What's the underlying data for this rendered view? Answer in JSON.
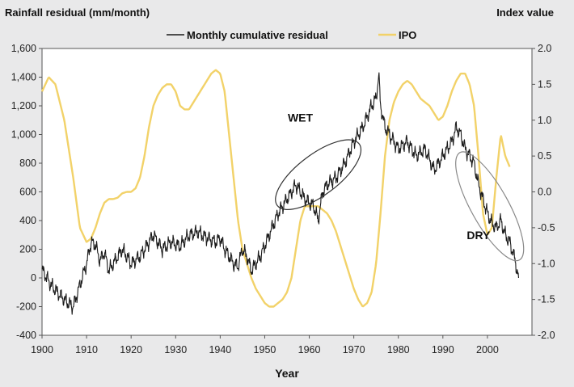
{
  "chart_data": {
    "type": "line",
    "left_axis_title": "Rainfall residual (mm/month)",
    "right_axis_title": "Index value",
    "xlabel": "Year",
    "xlim": [
      1900,
      2010
    ],
    "ylim_left": [
      -400,
      1600
    ],
    "ylim_right": [
      -2.0,
      2.0
    ],
    "x_ticks": [
      1900,
      1910,
      1920,
      1930,
      1940,
      1950,
      1960,
      1970,
      1980,
      1990,
      2000
    ],
    "x_tick_labels": [
      "1900",
      "1910",
      "1920",
      "1930",
      "1940",
      "1950",
      "1960",
      "1970",
      "1980",
      "1990",
      "2000"
    ],
    "y_left_ticks": [
      -400,
      -200,
      0,
      200,
      400,
      600,
      800,
      1000,
      1200,
      1400,
      1600
    ],
    "y_left_tick_labels": [
      "-400",
      "-200",
      "0",
      "200",
      "400",
      "600",
      "800",
      "1,000",
      "1,200",
      "1,400",
      "1,600"
    ],
    "y_right_ticks": [
      -2.0,
      -1.5,
      -1.0,
      -0.5,
      0.0,
      0.5,
      1.0,
      1.5,
      2.0
    ],
    "y_right_tick_labels": [
      "-2.0",
      "-1.5",
      "-1.0",
      "-0.5",
      "0.0",
      "0.5",
      "1.0",
      "1.5",
      "2.0"
    ],
    "series": [
      {
        "name": "Monthly cumulative residual",
        "axis": "left",
        "color": "#1a1a1a",
        "x": [
          1900,
          1902,
          1904,
          1906,
          1907,
          1909,
          1910,
          1911,
          1912,
          1913,
          1914,
          1915,
          1916,
          1918,
          1919,
          1920,
          1922,
          1924,
          1925,
          1927,
          1929,
          1931,
          1933,
          1935,
          1937,
          1939,
          1940,
          1941,
          1942,
          1943,
          1944,
          1945,
          1946,
          1947,
          1949,
          1951,
          1953,
          1955,
          1957,
          1959,
          1961,
          1962,
          1963,
          1964,
          1966,
          1968,
          1970,
          1972,
          1974,
          1975,
          1975.6,
          1976,
          1977,
          1978,
          1980,
          1982,
          1984,
          1986,
          1988,
          1990,
          1992,
          1993,
          1994,
          1995,
          1996,
          1997,
          1998,
          1999,
          2000,
          2001,
          2002,
          2003,
          2004,
          2005,
          2006,
          2007
        ],
        "values": [
          60,
          -50,
          -120,
          -180,
          -200,
          0,
          100,
          250,
          230,
          120,
          180,
          50,
          100,
          200,
          150,
          100,
          150,
          250,
          300,
          200,
          250,
          220,
          300,
          320,
          280,
          250,
          280,
          200,
          150,
          100,
          80,
          200,
          150,
          50,
          150,
          300,
          450,
          550,
          650,
          550,
          500,
          400,
          600,
          650,
          700,
          800,
          950,
          1050,
          1200,
          1250,
          1420,
          1200,
          1050,
          1000,
          900,
          950,
          850,
          900,
          750,
          850,
          950,
          1050,
          1000,
          900,
          850,
          800,
          650,
          550,
          450,
          380,
          350,
          400,
          300,
          250,
          150,
          0
        ],
        "noise_amplitude": 60
      },
      {
        "name": "IPO",
        "axis": "right",
        "color": "#f2d269",
        "x": [
          1900,
          1901.5,
          1903,
          1905,
          1907,
          1908.5,
          1910,
          1911,
          1912,
          1913,
          1914,
          1915,
          1916,
          1917,
          1918,
          1919,
          1920,
          1921,
          1922,
          1923,
          1924,
          1925,
          1926,
          1927,
          1928,
          1929,
          1930,
          1931,
          1932,
          1933,
          1934,
          1935,
          1936,
          1937,
          1938,
          1939,
          1940,
          1941,
          1942,
          1943,
          1944,
          1945,
          1946,
          1947,
          1948,
          1949,
          1950,
          1951,
          1952,
          1953,
          1954,
          1955,
          1956,
          1957,
          1958,
          1959,
          1960,
          1961,
          1962,
          1963,
          1964,
          1965,
          1966,
          1967,
          1968,
          1969,
          1970,
          1971,
          1972,
          1973,
          1974,
          1975,
          1976,
          1977,
          1978,
          1979,
          1980,
          1981,
          1982,
          1983,
          1984,
          1985,
          1986,
          1987,
          1988,
          1989,
          1990,
          1991,
          1992,
          1993,
          1994,
          1995,
          1996,
          1997,
          1998,
          1999,
          2000,
          2001,
          2002,
          2003,
          2004,
          2005
        ],
        "values": [
          1.4,
          1.6,
          1.5,
          1.0,
          0.2,
          -0.5,
          -0.7,
          -0.65,
          -0.5,
          -0.3,
          -0.15,
          -0.1,
          -0.1,
          -0.08,
          -0.02,
          0.0,
          0.0,
          0.05,
          0.2,
          0.5,
          0.9,
          1.2,
          1.35,
          1.45,
          1.5,
          1.5,
          1.4,
          1.2,
          1.15,
          1.15,
          1.25,
          1.35,
          1.45,
          1.55,
          1.65,
          1.7,
          1.65,
          1.4,
          0.8,
          0.2,
          -0.4,
          -0.8,
          -1.0,
          -1.2,
          -1.35,
          -1.45,
          -1.55,
          -1.6,
          -1.6,
          -1.55,
          -1.5,
          -1.4,
          -1.2,
          -0.8,
          -0.4,
          -0.2,
          -0.2,
          -0.2,
          -0.2,
          -0.25,
          -0.3,
          -0.4,
          -0.55,
          -0.75,
          -0.95,
          -1.15,
          -1.35,
          -1.5,
          -1.6,
          -1.55,
          -1.4,
          -1.0,
          -0.3,
          0.5,
          1.0,
          1.25,
          1.4,
          1.5,
          1.55,
          1.5,
          1.4,
          1.3,
          1.25,
          1.2,
          1.1,
          1.0,
          1.05,
          1.2,
          1.4,
          1.55,
          1.65,
          1.65,
          1.5,
          1.2,
          0.5,
          -0.3,
          -0.6,
          -0.5,
          0.2,
          0.8,
          0.5,
          0.35
        ]
      }
    ],
    "legend": {
      "position": "top"
    },
    "annotations": [
      {
        "text": "WET",
        "x": 1958,
        "y": 1090
      },
      {
        "text": "DRY",
        "x": 1998,
        "y": 270
      }
    ],
    "ellipses": [
      {
        "label": "WET",
        "color": "#333333",
        "cx": 1962,
        "cy": 720,
        "rx": 11.5,
        "ry": 4.6,
        "rotate_deg": -37
      },
      {
        "label": "DRY",
        "color": "#888888",
        "cx": 2000.5,
        "cy": 500,
        "rx": 13.8,
        "ry": 4.2,
        "rotate_deg": 61
      }
    ]
  }
}
